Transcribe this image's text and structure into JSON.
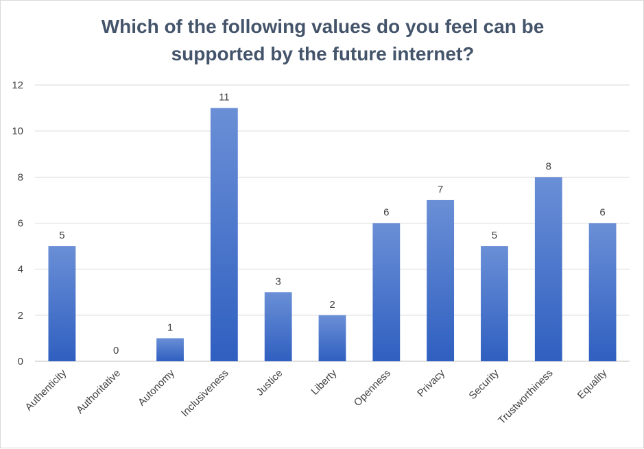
{
  "chart_data": {
    "type": "bar",
    "title_lines": [
      "Which of the following values do you feel can be",
      "supported by the future internet?"
    ],
    "categories": [
      "Authenticity",
      "Authoritative",
      "Autonomy",
      "Inclusiveness",
      "Justice",
      "Liberty",
      "Openness",
      "Privacy",
      "Security",
      "Trustworthiness",
      "Equality"
    ],
    "values": [
      5,
      0,
      1,
      11,
      3,
      2,
      6,
      7,
      5,
      8,
      6
    ],
    "ylim": [
      0,
      12
    ],
    "yticks": [
      0,
      2,
      4,
      6,
      8,
      10,
      12
    ],
    "grid": true,
    "legend": "none",
    "xlabel": "",
    "ylabel": "",
    "colors": {
      "bar_top": "#6a8fd6",
      "bar_bottom": "#2f5fc0",
      "title": "#44546a"
    }
  }
}
